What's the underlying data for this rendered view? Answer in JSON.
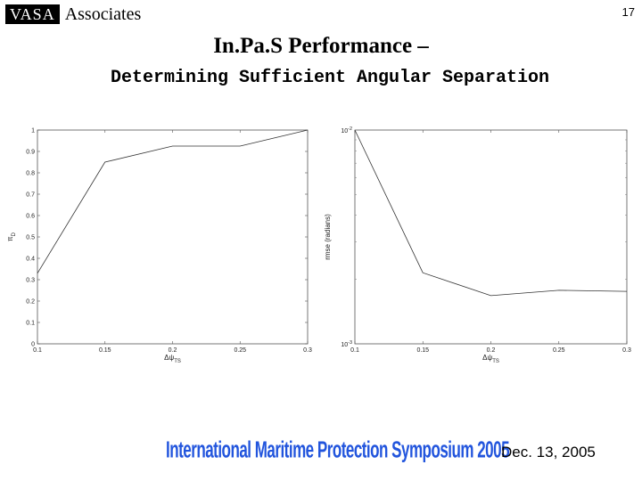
{
  "header": {
    "logo_box": "VASA",
    "logo_text": "Associates",
    "page_number": "17"
  },
  "title": "In.Pa.S Performance –",
  "subtitle": "Determining Sufficient Angular Separation",
  "footer": {
    "banner": "International Maritime Protection Symposium 2005",
    "date": "Dec. 13, 2005"
  },
  "chart_data": [
    {
      "type": "line",
      "title": "",
      "xlabel": "Δψ_TS",
      "ylabel": "π_D",
      "x": [
        0.1,
        0.15,
        0.2,
        0.25,
        0.3
      ],
      "y": [
        0.33,
        0.85,
        0.925,
        0.925,
        1.0
      ],
      "xlim": [
        0.1,
        0.3
      ],
      "ylim": [
        0,
        1
      ],
      "xticks": [
        "0.1",
        "0.15",
        "0.2",
        "0.25",
        "0.3"
      ],
      "yticks": [
        "0",
        "0.1",
        "0.2",
        "0.3",
        "0.4",
        "0.5",
        "0.6",
        "0.7",
        "0.8",
        "0.9",
        "1"
      ],
      "grid": false
    },
    {
      "type": "line",
      "title": "",
      "xlabel": "Δψ_TS",
      "ylabel": "rmse (radians)",
      "yscale": "log",
      "x": [
        0.1,
        0.15,
        0.2,
        0.25,
        0.3
      ],
      "y": [
        0.01,
        0.00215,
        0.00168,
        0.00178,
        0.00176
      ],
      "xlim": [
        0.1,
        0.3
      ],
      "ylim": [
        0.001,
        0.01
      ],
      "xticks": [
        "0.1",
        "0.15",
        "0.2",
        "0.25",
        "0.3"
      ],
      "yticks": [
        "10^-3",
        "10^-2"
      ],
      "grid": false
    }
  ]
}
